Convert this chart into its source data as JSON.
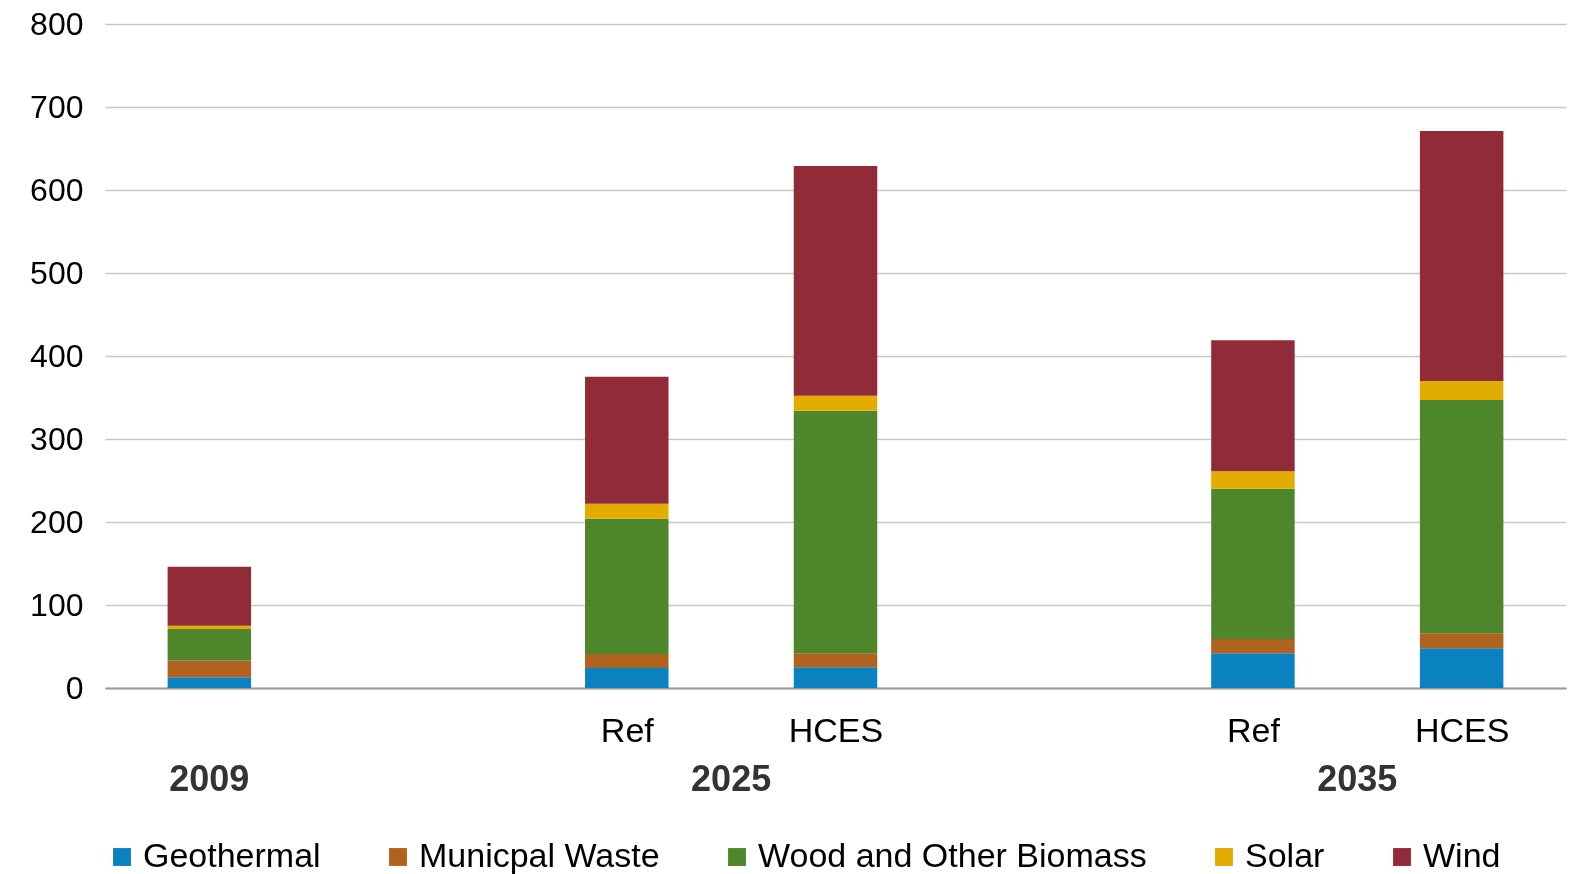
{
  "chart_data": {
    "type": "bar",
    "stacked": true,
    "categories": [
      null,
      null,
      "Ref",
      "HCES",
      null,
      "Ref",
      "HCES"
    ],
    "annotations": [
      "2009",
      "2025",
      "2035"
    ],
    "series": [
      {
        "name": "Geothermal",
        "color": "#0a82c0",
        "values": [
          13,
          null,
          24,
          25,
          null,
          42,
          48
        ]
      },
      {
        "name": "Municpal Waste",
        "color": "#b0621f",
        "values": [
          20,
          null,
          17,
          17,
          null,
          17,
          18
        ]
      },
      {
        "name": "Wood and Other Biomass",
        "color": "#4e862c",
        "values": [
          38,
          null,
          163,
          292,
          null,
          181,
          281
        ]
      },
      {
        "name": "Solar",
        "color": "#e3ac00",
        "values": [
          4,
          null,
          18,
          18,
          null,
          21,
          23
        ]
      },
      {
        "name": "Wind",
        "color": "#922b38",
        "values": [
          71,
          null,
          153,
          277,
          null,
          158,
          301
        ]
      }
    ],
    "ylim": [
      0,
      800
    ],
    "yticks": [
      0,
      100,
      200,
      300,
      400,
      500,
      600,
      700,
      800
    ],
    "grid": "y",
    "legend": "bottom"
  }
}
